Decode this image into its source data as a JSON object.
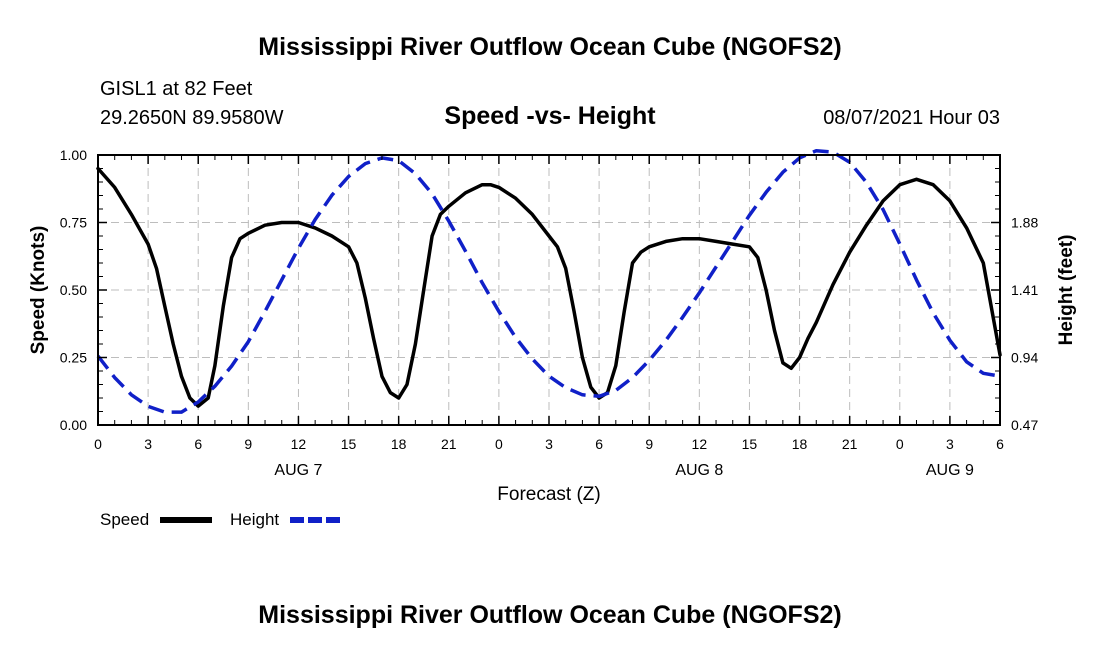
{
  "title": "Mississippi River Outflow Ocean Cube (NGOFS2)",
  "footer_title": "Mississippi River Outflow Ocean Cube (NGOFS2)",
  "station": {
    "name": "GISL1 at 82 Feet",
    "coords": "29.2650N  89.9580W"
  },
  "datetime": "08/07/2021 Hour 03",
  "colors": {
    "speed": "#000000",
    "height": "#1020c8",
    "grid": "#bdbdbd"
  },
  "chart_data": {
    "type": "line",
    "title": "Speed -vs- Height",
    "xlabel": "Forecast (Z)",
    "ylabel": "Speed (Knots)",
    "y2label": "Height (feet)",
    "xlim": [
      0,
      54
    ],
    "ylim": [
      0,
      1
    ],
    "y2lim": [
      0.47,
      2.35
    ],
    "x_ticks": [
      0,
      3,
      6,
      9,
      12,
      15,
      18,
      21,
      24,
      27,
      30,
      33,
      36,
      39,
      42,
      45,
      48,
      51,
      54
    ],
    "x_tick_labels": [
      "0",
      "3",
      "6",
      "9",
      "12",
      "15",
      "18",
      "21",
      "0",
      "3",
      "6",
      "9",
      "12",
      "15",
      "18",
      "21",
      "0",
      "3",
      "6"
    ],
    "date_labels": [
      {
        "x": 12,
        "label": "AUG 7"
      },
      {
        "x": 36,
        "label": "AUG 8"
      },
      {
        "x": 51,
        "label": "AUG 9"
      }
    ],
    "y_ticks": [
      0,
      0.25,
      0.5,
      0.75,
      1.0
    ],
    "y_tick_labels": [
      "0.00",
      "0.25",
      "0.50",
      "0.75",
      "1.00"
    ],
    "y2_ticks": [
      0.47,
      0.94,
      1.41,
      1.88
    ],
    "y2_tick_labels": [
      "0.47",
      "0.94",
      "1.41",
      "1.88"
    ],
    "legend": {
      "speed_label": "Speed",
      "height_label": "Height"
    },
    "series": [
      {
        "name": "Speed",
        "axis": "left",
        "style": "solid",
        "x": [
          0,
          1,
          2,
          3,
          3.5,
          4,
          4.5,
          5,
          5.5,
          6,
          6.6,
          7,
          7.5,
          8,
          8.5,
          9,
          10,
          11,
          12,
          13,
          14,
          15,
          15.5,
          16,
          16.5,
          17,
          17.5,
          18,
          18.5,
          19,
          19.5,
          20,
          20.5,
          21,
          22,
          23,
          23.5,
          24,
          25,
          26,
          27,
          27.5,
          28,
          28.5,
          29,
          29.5,
          30,
          30.5,
          31,
          31.5,
          32,
          32.5,
          33,
          34,
          35,
          36,
          37,
          38,
          39,
          39.5,
          40,
          40.5,
          41,
          41.5,
          42,
          42.5,
          43,
          44,
          45,
          46,
          47,
          48,
          48.5,
          49,
          50,
          51,
          52,
          53,
          54
        ],
        "values": [
          0.95,
          0.88,
          0.78,
          0.67,
          0.58,
          0.44,
          0.3,
          0.18,
          0.1,
          0.07,
          0.1,
          0.22,
          0.44,
          0.62,
          0.69,
          0.71,
          0.74,
          0.75,
          0.75,
          0.73,
          0.7,
          0.66,
          0.6,
          0.47,
          0.32,
          0.18,
          0.12,
          0.1,
          0.15,
          0.3,
          0.5,
          0.7,
          0.78,
          0.81,
          0.86,
          0.89,
          0.89,
          0.88,
          0.84,
          0.78,
          0.7,
          0.66,
          0.58,
          0.42,
          0.25,
          0.14,
          0.1,
          0.12,
          0.22,
          0.42,
          0.6,
          0.64,
          0.66,
          0.68,
          0.69,
          0.69,
          0.68,
          0.67,
          0.66,
          0.62,
          0.5,
          0.35,
          0.23,
          0.21,
          0.25,
          0.32,
          0.38,
          0.52,
          0.64,
          0.74,
          0.83,
          0.89,
          0.9,
          0.91,
          0.89,
          0.83,
          0.73,
          0.6,
          0.26
        ]
      },
      {
        "name": "Height",
        "axis": "right",
        "style": "dashed",
        "x": [
          0,
          1,
          2,
          3,
          4,
          5,
          6,
          7,
          8,
          9,
          10,
          11,
          12,
          13,
          14,
          15,
          16,
          17,
          18,
          19,
          20,
          21,
          22,
          23,
          24,
          25,
          26,
          27,
          28,
          29,
          30,
          31,
          32,
          33,
          34,
          35,
          36,
          37,
          38,
          39,
          40,
          41,
          42,
          43,
          44,
          45,
          46,
          47,
          48,
          49,
          50,
          51,
          52,
          53,
          54
        ],
        "values": [
          0.95,
          0.8,
          0.68,
          0.6,
          0.56,
          0.56,
          0.63,
          0.74,
          0.88,
          1.05,
          1.26,
          1.48,
          1.7,
          1.9,
          2.07,
          2.2,
          2.29,
          2.33,
          2.31,
          2.22,
          2.08,
          1.89,
          1.68,
          1.46,
          1.26,
          1.08,
          0.93,
          0.81,
          0.73,
          0.68,
          0.67,
          0.71,
          0.8,
          0.92,
          1.06,
          1.22,
          1.39,
          1.57,
          1.75,
          1.93,
          2.09,
          2.23,
          2.33,
          2.38,
          2.37,
          2.3,
          2.16,
          1.97,
          1.73,
          1.48,
          1.25,
          1.06,
          0.91,
          0.83,
          0.81
        ]
      }
    ]
  }
}
